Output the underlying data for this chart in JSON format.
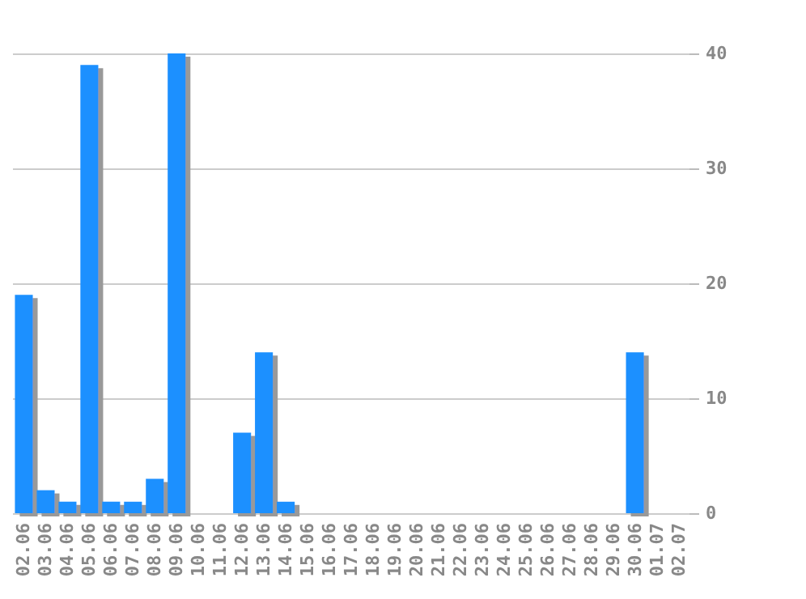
{
  "chart_data": {
    "type": "bar",
    "categories": [
      "02.06",
      "03.06",
      "04.06",
      "05.06",
      "06.06",
      "07.06",
      "08.06",
      "09.06",
      "10.06",
      "11.06",
      "12.06",
      "13.06",
      "14.06",
      "15.06",
      "16.06",
      "17.06",
      "18.06",
      "19.06",
      "20.06",
      "21.06",
      "22.06",
      "23.06",
      "24.06",
      "25.06",
      "26.06",
      "27.06",
      "28.06",
      "29.06",
      "30.06",
      "01.07",
      "02.07"
    ],
    "values": [
      19,
      2,
      1,
      39,
      1,
      1,
      3,
      40,
      0,
      0,
      7,
      14,
      1,
      0,
      0,
      0,
      0,
      0,
      0,
      0,
      0,
      0,
      0,
      0,
      0,
      0,
      0,
      0,
      14,
      0,
      0
    ],
    "color": "#1e90ff",
    "ylim": [
      0,
      40
    ],
    "yticks": [
      0,
      10,
      20,
      30,
      40
    ],
    "grid": "y"
  }
}
